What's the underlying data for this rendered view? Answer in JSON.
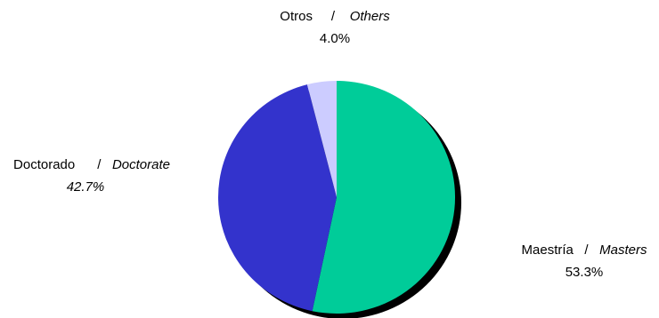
{
  "chart_data": {
    "type": "pie",
    "slices": [
      {
        "label_es": "Maestría",
        "label_en": "Masters",
        "value": 53.3,
        "value_text": "53.3%",
        "color": "#00cc99"
      },
      {
        "label_es": "Doctorado",
        "label_en": "Doctorate",
        "value": 42.7,
        "value_text": "42.7%",
        "color": "#3333cc"
      },
      {
        "label_es": "Otros",
        "label_en": "Others",
        "value": 4.0,
        "value_text": "4.0%",
        "color": "#ccccff"
      }
    ],
    "separator": "/",
    "start": "12 o'clock",
    "direction": "clockwise",
    "shadow_color": "#000000"
  }
}
